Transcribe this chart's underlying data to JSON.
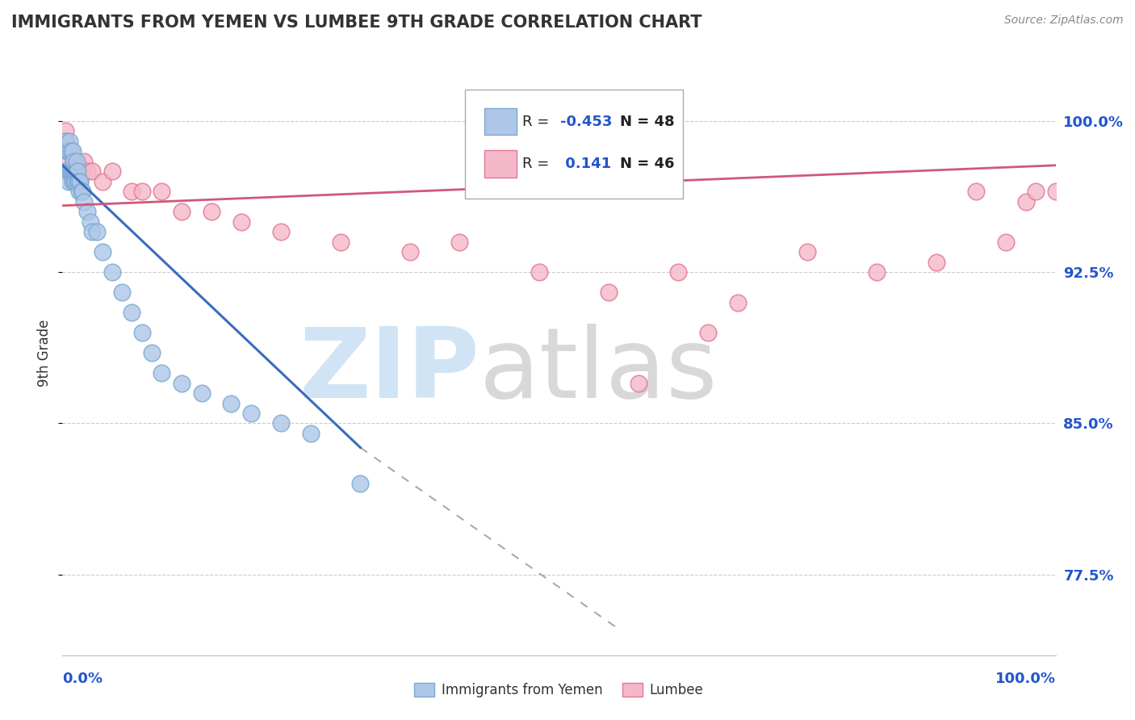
{
  "title": "IMMIGRANTS FROM YEMEN VS LUMBEE 9TH GRADE CORRELATION CHART",
  "source": "Source: ZipAtlas.com",
  "ylabel": "9th Grade",
  "ytick_labels": [
    "77.5%",
    "85.0%",
    "92.5%",
    "100.0%"
  ],
  "ytick_values": [
    0.775,
    0.85,
    0.925,
    1.0
  ],
  "xmin": 0.0,
  "xmax": 1.0,
  "ymin": 0.735,
  "ymax": 1.035,
  "series1_label": "Immigrants from Yemen",
  "series1_color": "#aec6e8",
  "series1_edge_color": "#7aaad0",
  "series1_line_color": "#3a6cbf",
  "series2_label": "Lumbee",
  "series2_color": "#f5b8c8",
  "series2_edge_color": "#e07898",
  "series2_line_color": "#d05878",
  "blue_x": [
    0.002,
    0.003,
    0.004,
    0.005,
    0.006,
    0.006,
    0.007,
    0.007,
    0.008,
    0.009,
    0.009,
    0.01,
    0.01,
    0.01,
    0.011,
    0.011,
    0.012,
    0.012,
    0.013,
    0.013,
    0.014,
    0.014,
    0.015,
    0.015,
    0.016,
    0.017,
    0.018,
    0.019,
    0.02,
    0.022,
    0.025,
    0.028,
    0.03,
    0.035,
    0.04,
    0.05,
    0.06,
    0.07,
    0.08,
    0.09,
    0.1,
    0.12,
    0.14,
    0.17,
    0.19,
    0.22,
    0.25,
    0.3
  ],
  "blue_y": [
    0.99,
    0.975,
    0.975,
    0.985,
    0.97,
    0.985,
    0.975,
    0.99,
    0.975,
    0.975,
    0.985,
    0.975,
    0.97,
    0.985,
    0.98,
    0.975,
    0.97,
    0.975,
    0.97,
    0.975,
    0.975,
    0.98,
    0.97,
    0.975,
    0.97,
    0.965,
    0.97,
    0.965,
    0.965,
    0.96,
    0.955,
    0.95,
    0.945,
    0.945,
    0.935,
    0.925,
    0.915,
    0.905,
    0.895,
    0.885,
    0.875,
    0.87,
    0.865,
    0.86,
    0.855,
    0.85,
    0.845,
    0.82
  ],
  "pink_x": [
    0.003,
    0.004,
    0.005,
    0.006,
    0.007,
    0.008,
    0.009,
    0.01,
    0.011,
    0.012,
    0.013,
    0.014,
    0.015,
    0.016,
    0.017,
    0.018,
    0.02,
    0.022,
    0.025,
    0.03,
    0.04,
    0.05,
    0.07,
    0.08,
    0.1,
    0.12,
    0.15,
    0.18,
    0.22,
    0.28,
    0.35,
    0.4,
    0.48,
    0.55,
    0.62,
    0.68,
    0.75,
    0.82,
    0.88,
    0.92,
    0.95,
    0.97,
    0.98,
    1.0,
    0.58,
    0.65
  ],
  "pink_y": [
    0.995,
    0.99,
    0.985,
    0.98,
    0.975,
    0.985,
    0.975,
    0.975,
    0.98,
    0.975,
    0.98,
    0.975,
    0.97,
    0.975,
    0.975,
    0.97,
    0.975,
    0.98,
    0.975,
    0.975,
    0.97,
    0.975,
    0.965,
    0.965,
    0.965,
    0.955,
    0.955,
    0.95,
    0.945,
    0.94,
    0.935,
    0.94,
    0.925,
    0.915,
    0.925,
    0.91,
    0.935,
    0.925,
    0.93,
    0.965,
    0.94,
    0.96,
    0.965,
    0.965,
    0.87,
    0.895
  ],
  "blue_trend_x0": 0.0,
  "blue_trend_x_solid_end": 0.3,
  "blue_trend_x_dash_end": 0.56,
  "blue_trend_y0": 0.978,
  "blue_trend_y_solid_end": 0.838,
  "blue_trend_y_dash_end": 0.748,
  "pink_trend_x0": 0.0,
  "pink_trend_x_end": 1.0,
  "pink_trend_y0": 0.958,
  "pink_trend_y_end": 0.978,
  "watermark_zip_color": "#d0e4f5",
  "watermark_atlas_color": "#d8d8d8",
  "background_color": "#ffffff",
  "grid_color": "#cccccc",
  "title_color": "#333333",
  "axis_color": "#2255cc",
  "legend_R1_val": "-0.453",
  "legend_N1": "N = 48",
  "legend_R2_val": "0.141",
  "legend_N2": "N = 46"
}
